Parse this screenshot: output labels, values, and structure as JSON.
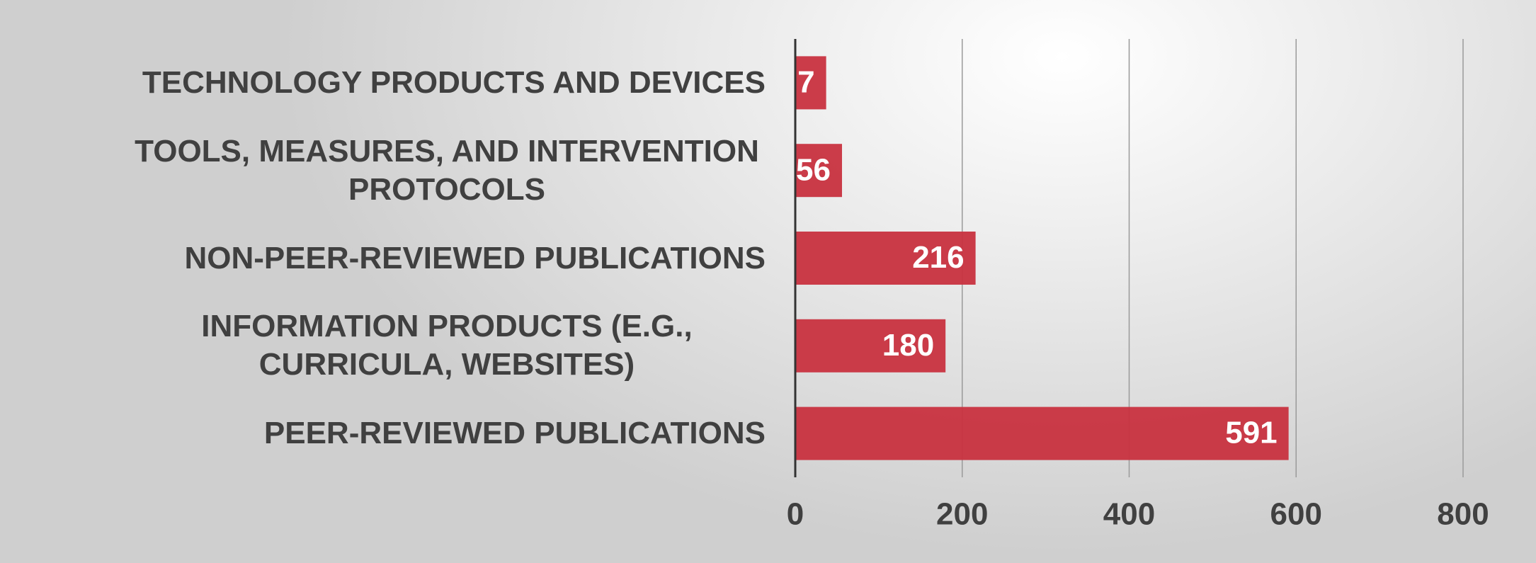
{
  "chart_data": {
    "type": "barh",
    "categories": [
      "TECHNOLOGY PRODUCTS AND DEVICES",
      "TOOLS, MEASURES, AND INTERVENTION PROTOCOLS",
      "NON-PEER-REVIEWED PUBLICATIONS",
      "INFORMATION PRODUCTS (E.G., CURRICULA, WEBSITES)",
      "PEER-REVIEWED PUBLICATIONS"
    ],
    "values": [
      37,
      56,
      216,
      180,
      591
    ],
    "color": "#c8323f",
    "xlim": [
      0,
      800
    ],
    "xticks": [
      0,
      200,
      400,
      600,
      800
    ],
    "grid": true
  }
}
